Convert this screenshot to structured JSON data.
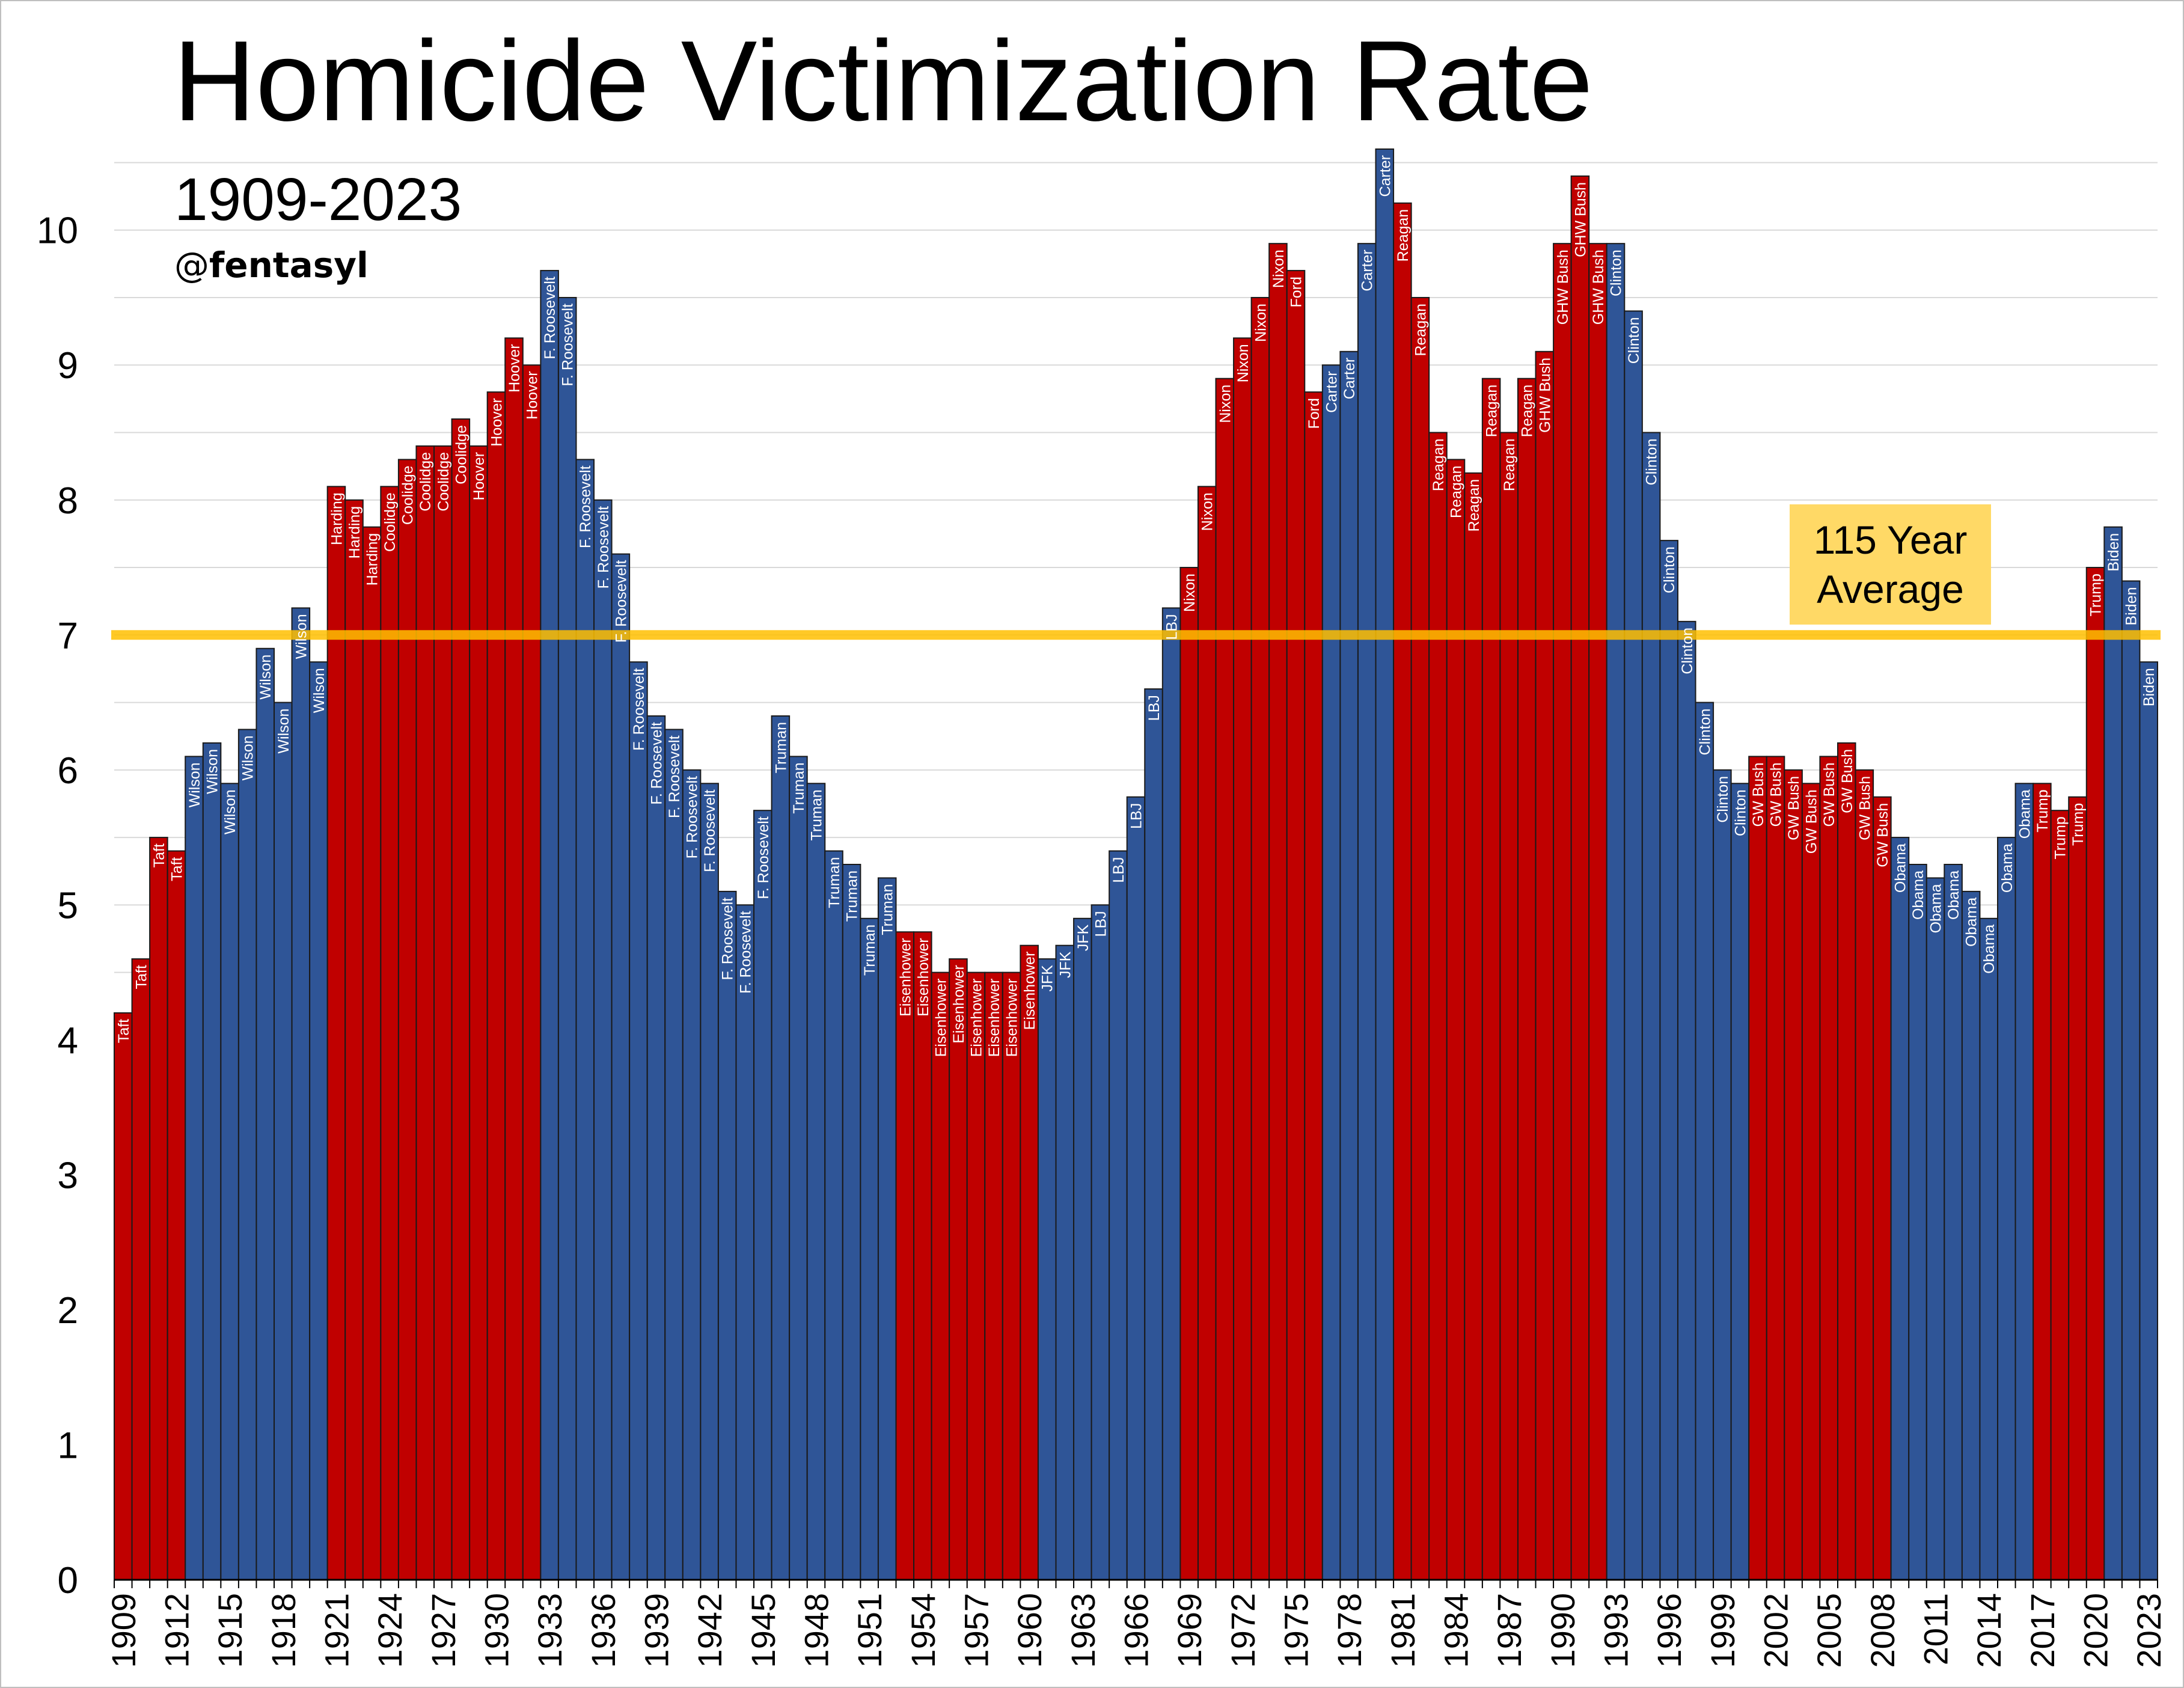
{
  "chart_data": {
    "type": "bar",
    "title": "Homicide Victimization Rate",
    "subtitle": "1909-2023",
    "attribution_at": "@",
    "attribution_name": "fentasyl",
    "xlabel": "",
    "ylabel": "",
    "ylim": [
      0,
      10.6
    ],
    "yticks": [
      0,
      1,
      2,
      3,
      4,
      5,
      6,
      7,
      8,
      9,
      10
    ],
    "grid": true,
    "party_colors": {
      "D": "#2f5597",
      "R": "#c00000"
    },
    "average": {
      "value": 7.0,
      "label_line1": "115 Year",
      "label_line2": "Average",
      "color": "#ffc000"
    },
    "xtick_years": [
      1909,
      1912,
      1915,
      1918,
      1921,
      1924,
      1927,
      1930,
      1933,
      1936,
      1939,
      1942,
      1945,
      1948,
      1951,
      1954,
      1957,
      1960,
      1963,
      1966,
      1969,
      1972,
      1975,
      1978,
      1981,
      1984,
      1987,
      1990,
      1993,
      1996,
      1999,
      2002,
      2005,
      2008,
      2011,
      2014,
      2017,
      2020,
      2023
    ],
    "start_year": 1909,
    "values": [
      4.2,
      4.6,
      5.5,
      5.4,
      6.1,
      6.2,
      5.9,
      6.3,
      6.9,
      6.5,
      7.2,
      6.8,
      8.1,
      8.0,
      7.8,
      8.1,
      8.3,
      8.4,
      8.4,
      8.6,
      8.4,
      8.8,
      9.2,
      9.0,
      9.7,
      9.5,
      8.3,
      8.0,
      7.6,
      6.8,
      6.4,
      6.3,
      6.0,
      5.9,
      5.1,
      5.0,
      5.7,
      6.4,
      6.1,
      5.9,
      5.4,
      5.3,
      4.9,
      5.2,
      4.8,
      4.8,
      4.5,
      4.6,
      4.5,
      4.5,
      4.5,
      4.7,
      4.6,
      4.7,
      4.9,
      5.0,
      5.4,
      5.8,
      6.6,
      7.2,
      7.5,
      8.1,
      8.9,
      9.2,
      9.5,
      9.9,
      9.7,
      8.8,
      9.0,
      9.1,
      9.9,
      10.6,
      10.2,
      9.5,
      8.5,
      8.3,
      8.2,
      8.9,
      8.5,
      8.9,
      9.1,
      9.9,
      10.4,
      9.9,
      9.9,
      9.4,
      8.5,
      7.7,
      7.1,
      6.5,
      6.0,
      5.9,
      6.1,
      6.1,
      6.0,
      5.9,
      6.1,
      6.2,
      6.0,
      5.8,
      5.5,
      5.3,
      5.2,
      5.3,
      5.1,
      4.9,
      5.5,
      5.9,
      5.9,
      5.7,
      5.8,
      7.5,
      7.8,
      7.4,
      6.8
    ],
    "presidents": [
      "Taft",
      "Taft",
      "Taft",
      "Taft",
      "Wilson",
      "Wilson",
      "Wilson",
      "Wilson",
      "Wilson",
      "Wilson",
      "Wilson",
      "Wilson",
      "Harding",
      "Harding",
      "Harding",
      "Coolidge",
      "Coolidge",
      "Coolidge",
      "Coolidge",
      "Coolidge",
      "Hoover",
      "Hoover",
      "Hoover",
      "Hoover",
      "F. Roosevelt",
      "F. Roosevelt",
      "F. Roosevelt",
      "F. Roosevelt",
      "F. Roosevelt",
      "F. Roosevelt",
      "F. Roosevelt",
      "F. Roosevelt",
      "F. Roosevelt",
      "F. Roosevelt",
      "F. Roosevelt",
      "F. Roosevelt",
      "F. Roosevelt",
      "Truman",
      "Truman",
      "Truman",
      "Truman",
      "Truman",
      "Truman",
      "Truman",
      "Eisenhower",
      "Eisenhower",
      "Eisenhower",
      "Eisenhower",
      "Eisenhower",
      "Eisenhower",
      "Eisenhower",
      "Eisenhower",
      "JFK",
      "JFK",
      "JFK",
      "LBJ",
      "LBJ",
      "LBJ",
      "LBJ",
      "LBJ",
      "Nixon",
      "Nixon",
      "Nixon",
      "Nixon",
      "Nixon",
      "Nixon",
      "Ford",
      "Ford",
      "Carter",
      "Carter",
      "Carter",
      "Carter",
      "Reagan",
      "Reagan",
      "Reagan",
      "Reagan",
      "Reagan",
      "Reagan",
      "Reagan",
      "Reagan",
      "GHW Bush",
      "GHW Bush",
      "GHW Bush",
      "GHW Bush",
      "Clinton",
      "Clinton",
      "Clinton",
      "Clinton",
      "Clinton",
      "Clinton",
      "Clinton",
      "Clinton",
      "GW Bush",
      "GW Bush",
      "GW Bush",
      "GW Bush",
      "GW Bush",
      "GW Bush",
      "GW Bush",
      "GW Bush",
      "Obama",
      "Obama",
      "Obama",
      "Obama",
      "Obama",
      "Obama",
      "Obama",
      "Obama",
      "Trump",
      "Trump",
      "Trump",
      "Trump",
      "Biden",
      "Biden",
      "Biden"
    ],
    "parties": [
      "R",
      "R",
      "R",
      "R",
      "D",
      "D",
      "D",
      "D",
      "D",
      "D",
      "D",
      "D",
      "R",
      "R",
      "R",
      "R",
      "R",
      "R",
      "R",
      "R",
      "R",
      "R",
      "R",
      "R",
      "D",
      "D",
      "D",
      "D",
      "D",
      "D",
      "D",
      "D",
      "D",
      "D",
      "D",
      "D",
      "D",
      "D",
      "D",
      "D",
      "D",
      "D",
      "D",
      "D",
      "R",
      "R",
      "R",
      "R",
      "R",
      "R",
      "R",
      "R",
      "D",
      "D",
      "D",
      "D",
      "D",
      "D",
      "D",
      "D",
      "R",
      "R",
      "R",
      "R",
      "R",
      "R",
      "R",
      "R",
      "D",
      "D",
      "D",
      "D",
      "R",
      "R",
      "R",
      "R",
      "R",
      "R",
      "R",
      "R",
      "R",
      "R",
      "R",
      "R",
      "D",
      "D",
      "D",
      "D",
      "D",
      "D",
      "D",
      "D",
      "R",
      "R",
      "R",
      "R",
      "R",
      "R",
      "R",
      "R",
      "D",
      "D",
      "D",
      "D",
      "D",
      "D",
      "D",
      "D",
      "R",
      "R",
      "R",
      "R",
      "D",
      "D",
      "D"
    ]
  }
}
